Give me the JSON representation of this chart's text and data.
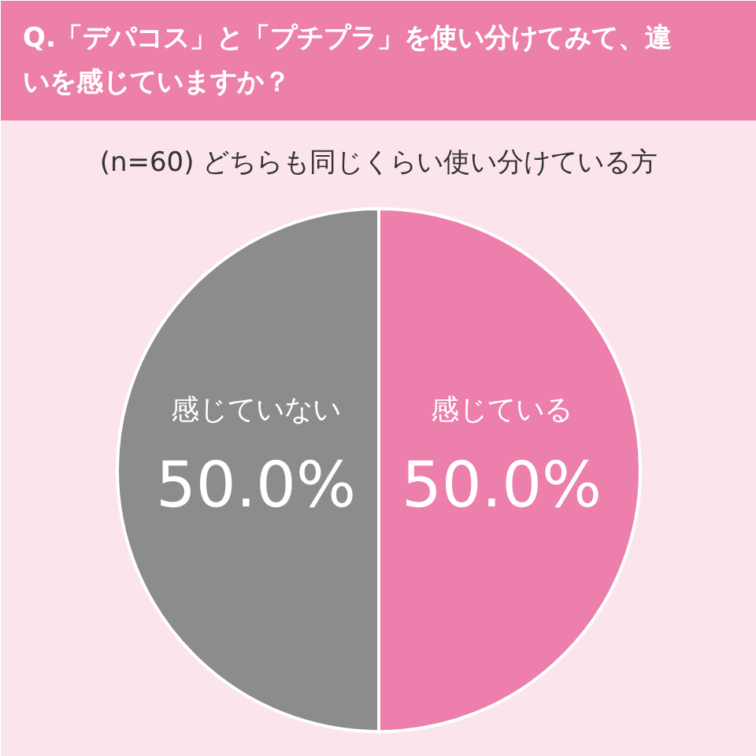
{
  "chart_data": {
    "type": "pie",
    "title": "Q.「デパコス」と「プチプラ」を使い分けてみて、違いを感じていますか？",
    "subtitle": "(n=60) どちらも同じくらい使い分けている方",
    "categories": [
      "感じている",
      "感じていない"
    ],
    "values": [
      50,
      50
    ],
    "colors": [
      "#ec7fab",
      "#8c8c8c"
    ],
    "value_labels": [
      "50.0%",
      "50.0%"
    ]
  }
}
